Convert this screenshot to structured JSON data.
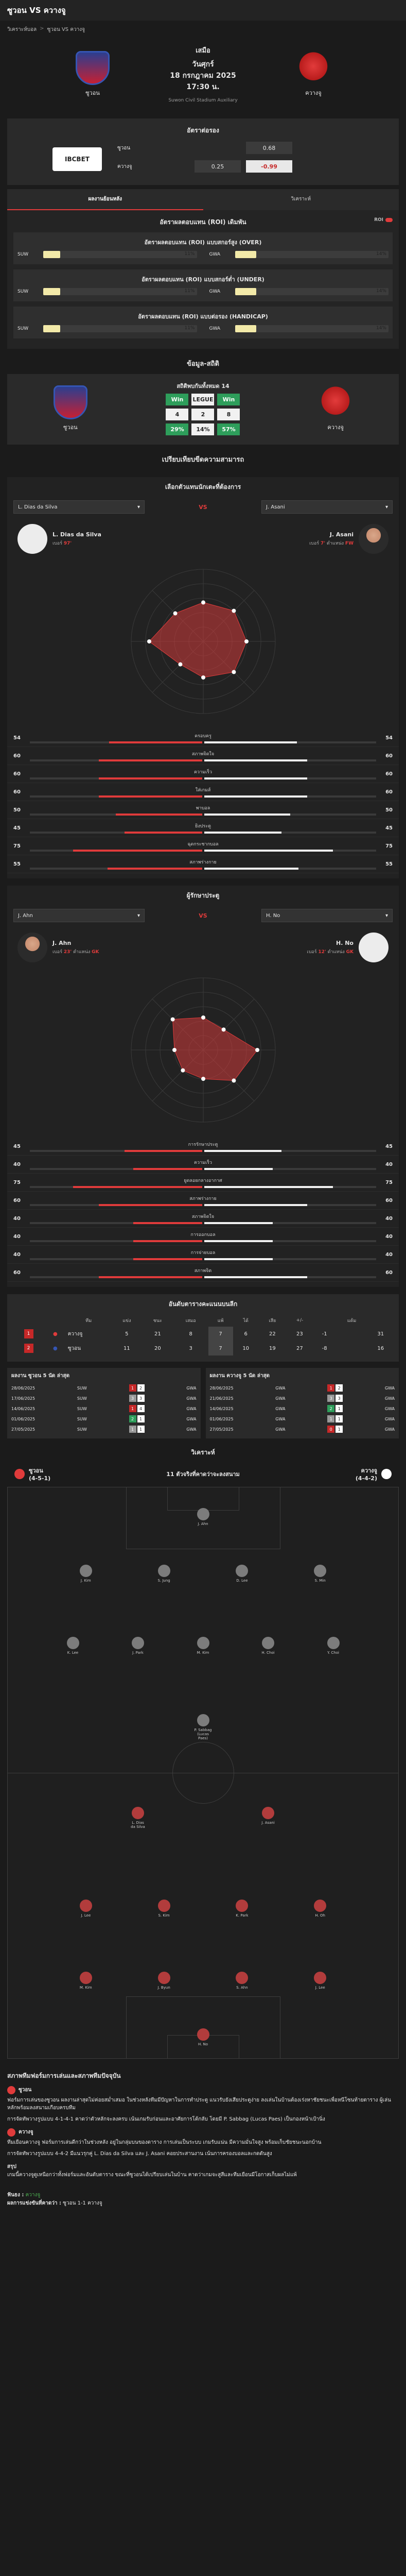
{
  "header": {
    "title": "ซูวอน VS ควางจู"
  },
  "breadcrumb": {
    "home": "วิเคราะห์บอล",
    "sep": ">",
    "current": "ซูวอน VS ควางจู"
  },
  "match": {
    "status": "เสมือ",
    "day": "วันศุกร์",
    "date": "18 กรกฎาคม 2025",
    "time": "17:30 น.",
    "venue": "Suwon Civil Stadium Auxiliary",
    "home": "ซูวอน",
    "away": "ควางจู"
  },
  "odds": {
    "title": "อัตราต่อรอง",
    "bookmaker": "IBCBET",
    "rows": [
      {
        "team": "ซูวอน",
        "a": "",
        "b": "0.68"
      },
      {
        "team": "ควางจู",
        "a": "0.25",
        "b": "-0.99"
      }
    ]
  },
  "tabs": [
    "ผลงานย้อนหลัง",
    "วิเคราะห์"
  ],
  "roi": {
    "title": "อัตราผลตอบแทน (ROI) เดิมพัน",
    "toggle": "ROI",
    "blocks": [
      {
        "title": "อัตราผลตอบแทน (ROI) แบบสกอร์สูง (OVER)",
        "left_label": "SUW",
        "left_pct": "11%",
        "right_label": "GWA",
        "right_pct": "14%"
      },
      {
        "title": "อัตราผลตอบแทน (ROI) แบบสกอร์ต่ำ (UNDER)",
        "left_label": "SUW",
        "left_pct": "11%",
        "right_label": "GWA",
        "right_pct": "14%"
      },
      {
        "title": "อัตราผลตอบแทน (ROI) แบบต่อรอง (HANDICAP)",
        "left_label": "SUW",
        "left_pct": "11%",
        "right_label": "GWA",
        "right_pct": "14%"
      }
    ],
    "fills": [
      0.11,
      0.14
    ]
  },
  "h2h": {
    "section": "ข้อมูล-สถิติ",
    "caption": "สถิติพบกันทั้งหมด 14",
    "labels": [
      "Win",
      "LEGUE",
      "Win"
    ],
    "counts": [
      "4",
      "2",
      "8"
    ],
    "pcts": [
      "29%",
      "14%",
      "57%"
    ]
  },
  "compare_section": "เปรียบเทียบขีดความสามารถ",
  "compare": [
    {
      "title": "เลือกตัวแทนนักเตะที่ต้องการ",
      "left_select": "L. Dias da Silva",
      "right_select": "J. Asani",
      "vs": "VS",
      "left_player": {
        "name": "L. Dias da Silva",
        "meta_a": "เบอร์",
        "num": "97'",
        "pos_label": "",
        "pos": ""
      },
      "right_player": {
        "name": "J. Asani",
        "meta_a": "เบอร์",
        "num": "7'",
        "pos_label": "ตำแหน่ง",
        "pos": "FW"
      },
      "stats": [
        {
          "label": "ครอบครู",
          "l": "54",
          "r": "54",
          "lf": 0.54,
          "rf": 0.54
        },
        {
          "label": "สภาพจิตใจ",
          "l": "60",
          "r": "60",
          "lf": 0.6,
          "rf": 0.6
        },
        {
          "label": "ความเร็ว",
          "l": "60",
          "r": "60",
          "lf": 0.6,
          "rf": 0.6
        },
        {
          "label": "ใส่เกมส์",
          "l": "60",
          "r": "60",
          "lf": 0.6,
          "rf": 0.6
        },
        {
          "label": "พาบอล",
          "l": "50",
          "r": "50",
          "lf": 0.5,
          "rf": 0.5
        },
        {
          "label": "ยิงประตู",
          "l": "45",
          "r": "45",
          "lf": 0.45,
          "rf": 0.45
        },
        {
          "label": "ฉุดกระชากบอล",
          "l": "75",
          "r": "75",
          "lf": 0.75,
          "rf": 0.75
        },
        {
          "label": "สภาพร่างกาย",
          "l": "55",
          "r": "55",
          "lf": 0.55,
          "rf": 0.55
        }
      ]
    },
    {
      "title": "ผู้รักษาประตู",
      "left_select": "J. Ahn",
      "right_select": "H. No",
      "vs": "VS",
      "left_player": {
        "name": "J. Ahn",
        "meta_a": "เบอร์",
        "num": "23'",
        "pos_label": "ตำแหน่ง",
        "pos": "GK"
      },
      "right_player": {
        "name": "H. No",
        "meta_a": "เบอร์",
        "num": "12'",
        "pos_label": "ตำแหน่ง",
        "pos": "GK"
      },
      "stats": [
        {
          "label": "การรักษาประตู",
          "l": "45",
          "r": "45",
          "lf": 0.45,
          "rf": 0.45
        },
        {
          "label": "ความเร็ว",
          "l": "40",
          "r": "40",
          "lf": 0.4,
          "rf": 0.4
        },
        {
          "label": "ยูดลอยกลางอากาศ",
          "l": "75",
          "r": "75",
          "lf": 0.75,
          "rf": 0.75
        },
        {
          "label": "สภาพร่างกาย",
          "l": "60",
          "r": "60",
          "lf": 0.6,
          "rf": 0.6
        },
        {
          "label": "สภาพจิตใจ",
          "l": "40",
          "r": "40",
          "lf": 0.4,
          "rf": 0.4
        },
        {
          "label": "การออกบอล",
          "l": "40",
          "r": "40",
          "lf": 0.4,
          "rf": 0.4
        },
        {
          "label": "การจ่ายบอล",
          "l": "40",
          "r": "40",
          "lf": 0.4,
          "rf": 0.4
        },
        {
          "label": "สภาพจิต",
          "l": "60",
          "r": "60",
          "lf": 0.6,
          "rf": 0.6
        }
      ]
    }
  ],
  "standings": {
    "title": "อันดับตารางคะแนนบนลีก",
    "headers": [
      "",
      "",
      "ทีม",
      "แข่ง",
      "ชนะ",
      "เสมอ",
      "แพ้",
      "ได้",
      "เสีย",
      "+/-",
      "",
      "แต้ม"
    ],
    "rows": [
      {
        "pos": "1",
        "team": "ควางจู",
        "vals": [
          "5",
          "21",
          "8",
          "7",
          "6",
          "22",
          "23",
          "-1",
          "",
          "31"
        ]
      },
      {
        "pos": "2",
        "team": "ซูวอน",
        "vals": [
          "11",
          "20",
          "3",
          "7",
          "10",
          "19",
          "27",
          "-8",
          "",
          "16"
        ]
      }
    ]
  },
  "recent": {
    "home_title": "ผลงาน ซูวอน 5 นัด ล่าสุด",
    "away_title": "ผลงาน ควางจู 5 นัด ล่าสุด",
    "home": [
      {
        "date": "28/06/2025",
        "t1": "SUW",
        "s1": "1",
        "s2": "2",
        "res": "l",
        "t2": "GWA"
      },
      {
        "date": "17/06/2025",
        "t1": "SUW",
        "s1": "3",
        "s2": "3",
        "res": "d",
        "t2": "GWA"
      },
      {
        "date": "14/06/2025",
        "t1": "SUW",
        "s1": "1",
        "s2": "4",
        "res": "l",
        "t2": "GWA"
      },
      {
        "date": "01/06/2025",
        "t1": "SUW",
        "s1": "2",
        "s2": "1",
        "res": "w",
        "t2": "GWA"
      },
      {
        "date": "27/05/2025",
        "t1": "SUW",
        "s1": "1",
        "s2": "1",
        "res": "d",
        "t2": "GWA"
      }
    ],
    "away": [
      {
        "date": "28/06/2025",
        "t1": "GWA",
        "s1": "1",
        "s2": "2",
        "res": "l",
        "t2": "GWA"
      },
      {
        "date": "21/06/2025",
        "t1": "GWA",
        "s1": "3",
        "s2": "3",
        "res": "d",
        "t2": "GWA"
      },
      {
        "date": "14/06/2025",
        "t1": "GWA",
        "s1": "2",
        "s2": "1",
        "res": "w",
        "t2": "GWA"
      },
      {
        "date": "01/06/2025",
        "t1": "GWA",
        "s1": "1",
        "s2": "1",
        "res": "d",
        "t2": "GWA"
      },
      {
        "date": "27/05/2025",
        "t1": "GWA",
        "s1": "0",
        "s2": "1",
        "res": "l",
        "t2": "GWA"
      }
    ]
  },
  "lineup": {
    "section": "วิเคราะห์",
    "title": "11 ตัวจริงที่คาดว่าจะลงสนาม",
    "home_name": "ซูวอน",
    "home_form": "(4-5-1)",
    "away_name": "ควางจู",
    "away_form": "(4-4-2)",
    "home_players": [
      {
        "n": "J. Ahn"
      },
      {
        "n": "J. Kim"
      },
      {
        "n": "S. Jung"
      },
      {
        "n": "D. Lee"
      },
      {
        "n": "S. Min"
      },
      {
        "n": "K. Lee"
      },
      {
        "n": "J. Park"
      },
      {
        "n": "M. Kim"
      },
      {
        "n": "H. Choi"
      },
      {
        "n": "Y. Choi"
      },
      {
        "n": "P. Sabbag (Lucas Paes)"
      }
    ],
    "away_players": [
      {
        "n": "L. Dias da Silva"
      },
      {
        "n": "J. Asani"
      },
      {
        "n": "J. Lee"
      },
      {
        "n": "S. Kim"
      },
      {
        "n": "K. Park"
      },
      {
        "n": "H. Oh"
      },
      {
        "n": "M. Kim"
      },
      {
        "n": "J. Byun"
      },
      {
        "n": "S. Ahn"
      },
      {
        "n": "J. Lee"
      },
      {
        "n": "H. No"
      }
    ]
  },
  "analysis": {
    "title": "สภาพทีมฟอร์มการเล่นและสภาพทีมปัจจุบัน",
    "home_name": "ซูวอน",
    "home_text": "ฟอร์มการเล่นของซูวอน ผลงานล่าสุดไม่ค่อยสม่ำเสมอ ในช่วงหลังทีมมีปัญหาในการทำประตู แนวรับยังเสียประตูง่าย ลงเล่นในบ้านต้องเร่งหาชัยชนะเพื่อหนีโซนท้ายตาราง ผู้เล่นหลักพร้อมลงสนามเกือบครบทีม",
    "home_text2": "การจัดทัพวางรูปแบบ 4-1-4-1 คาดว่าตัวหลักจะลงครบ เน้นเกมรับก่อนและอาศัยการโต้กลับ โดยมี P. Sabbag (Lucas Paes) เป็นกองหน้าเป้านิ่ง",
    "away_name": "ควางจู",
    "away_text": "ทีมเยือนควางจู ฟอร์มการเล่นดีกว่าในช่วงหลัง อยู่ในกลุ่มบนของตาราง การเล่นเป็นระบบ เกมรับแน่น มีความมั่นใจสูง พร้อมเก็บชัยชนะนอกบ้าน",
    "away_text2": "การจัดทัพวางรูปแบบ 4-4-2 มีแนวรุกคู่ L. Dias da Silva และ J. Asani คอยประสานงาน เน้นการครองบอลและกดดันสูง",
    "summary_title": "สรุป",
    "summary": "เกมนี้ควางจูดูเหนือกว่าทั้งฟอร์มและอันดับตาราง ขณะที่ซูวอนได้เปรียบเล่นในบ้าน คาดว่าเกมจะสูสีและทีมเยือนมีโอกาสเก็บผลไม่แพ้",
    "pick_label": "ฟันธง :",
    "pick": "ควางจู",
    "score_label": "ผลการแข่งขันที่คาดว่า :",
    "score": "ซูวอน 1-1 ควางจู"
  },
  "colors": {
    "accent": "#e03b3b",
    "bg": "#1b1b1b",
    "panel": "#2a2a2a",
    "green": "#2e9e5b"
  }
}
